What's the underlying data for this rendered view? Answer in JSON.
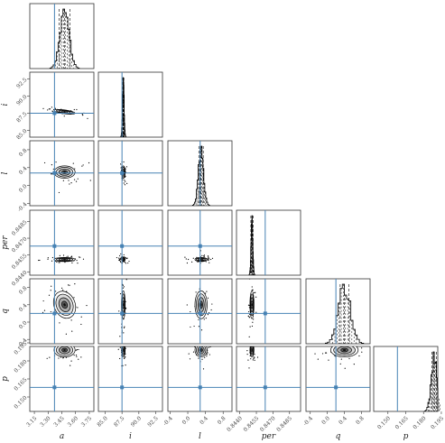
{
  "chart_data": {
    "type": "corner",
    "parameters": [
      {
        "name": "a",
        "label": "a",
        "range": [
          3.1,
          3.8
        ],
        "ticks": [
          "3.15",
          "3.30",
          "3.45",
          "3.60",
          "3.75"
        ],
        "tick_values": [
          3.15,
          3.3,
          3.45,
          3.6,
          3.75
        ],
        "truth": 3.37,
        "mean": 3.48,
        "std": 0.05,
        "quantiles": [
          3.42,
          3.48,
          3.54
        ]
      },
      {
        "name": "i",
        "label": "i",
        "range": [
          84.0,
          93.5
        ],
        "ticks": [
          "85.0",
          "87.5",
          "90.0",
          "92.5"
        ],
        "tick_values": [
          85.0,
          87.5,
          90.0,
          92.5
        ],
        "truth": 87.5,
        "mean": 87.7,
        "std": 0.12,
        "quantiles": [
          87.62,
          87.7,
          87.78
        ]
      },
      {
        "name": "l",
        "label": "l",
        "range": [
          -0.45,
          1.0
        ],
        "ticks": [
          "-0.4",
          "0.0",
          "0.4",
          "0.8"
        ],
        "tick_values": [
          -0.4,
          0.0,
          0.4,
          0.8
        ],
        "truth": 0.28,
        "mean": 0.3,
        "std": 0.06,
        "quantiles": [
          0.25,
          0.3,
          0.35
        ]
      },
      {
        "name": "per",
        "label": "per",
        "range": [
          0.8437,
          0.8495
        ],
        "ticks": [
          "0.8440",
          "0.8455",
          "0.8470",
          "0.8485"
        ],
        "tick_values": [
          0.844,
          0.8455,
          0.847,
          0.8485
        ],
        "truth": 0.8463,
        "mean": 0.8451,
        "std": 8e-05,
        "quantiles": [
          0.845,
          0.8451,
          0.8452
        ]
      },
      {
        "name": "q",
        "label": "q",
        "range": [
          -0.5,
          1.0
        ],
        "ticks": [
          "-0.4",
          "0.0",
          "0.4",
          "0.8"
        ],
        "tick_values": [
          -0.4,
          0.0,
          0.4,
          0.8
        ],
        "truth": 0.2,
        "mean": 0.4,
        "std": 0.14,
        "quantiles": [
          0.3,
          0.4,
          0.5
        ]
      },
      {
        "name": "p",
        "label": "p",
        "range": [
          0.138,
          0.192
        ],
        "ticks": [
          "0.150",
          "0.165",
          "0.180",
          "0.195"
        ],
        "tick_values": [
          0.15,
          0.165,
          0.18,
          0.195
        ],
        "truth": 0.158,
        "mean": 0.189,
        "std": 0.0025,
        "quantiles": [
          0.187,
          0.189,
          0.191
        ]
      }
    ],
    "contour_levels": [
      "0.5-sigma",
      "1-sigma",
      "1.5-sigma",
      "2-sigma"
    ],
    "colors": {
      "truth": "#4682b4",
      "contour": "#000000",
      "fill": "#b0b0b0"
    }
  }
}
